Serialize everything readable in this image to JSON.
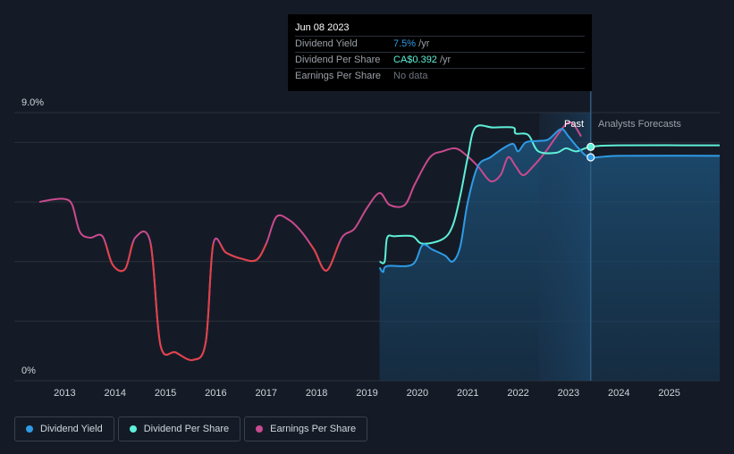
{
  "colors": {
    "background": "#151b26",
    "dividend_yield": "#2e9be6",
    "dividend_per_share": "#5ef0d8",
    "eps_positive": "#c94a8f",
    "eps_negative": "#e0434a",
    "grid": "#2a303b"
  },
  "tooltip": {
    "date": "Jun 08 2023",
    "rows": [
      {
        "label": "Dividend Yield",
        "value": "7.5%",
        "suffix": " /yr"
      },
      {
        "label": "Dividend Per Share",
        "value": "CA$0.392",
        "suffix": " /yr"
      },
      {
        "label": "Earnings Per Share",
        "value": "No data",
        "suffix": ""
      }
    ]
  },
  "legend": {
    "items": [
      {
        "label": "Dividend Yield",
        "color": "#2e9be6"
      },
      {
        "label": "Dividend Per Share",
        "color": "#5ef0d8"
      },
      {
        "label": "Earnings Per Share",
        "color": "#c94a8f"
      }
    ]
  },
  "chart_data": {
    "type": "line",
    "y_axis": {
      "min": 0,
      "max": 9.0,
      "top_label": "9.0%",
      "bottom_label": "0%"
    },
    "x_axis": {
      "min": 2012.25,
      "max": 2026.0,
      "ticks": [
        "2013",
        "2014",
        "2015",
        "2016",
        "2017",
        "2018",
        "2019",
        "2020",
        "2021",
        "2022",
        "2023",
        "2024",
        "2025"
      ]
    },
    "past_label": "Past",
    "forecast_label": "Analysts Forecasts",
    "forecast_start": 2023.44,
    "shaded_start": 2022.42,
    "series": [
      {
        "name": "Earnings Per Share",
        "key": "eps",
        "points": [
          [
            2012.5,
            6.0
          ],
          [
            2012.75,
            6.08
          ],
          [
            2013.0,
            6.1
          ],
          [
            2013.15,
            5.9
          ],
          [
            2013.3,
            5.0
          ],
          [
            2013.5,
            4.8
          ],
          [
            2013.75,
            4.85
          ],
          [
            2013.95,
            3.9
          ],
          [
            2014.2,
            3.75
          ],
          [
            2014.4,
            4.8
          ],
          [
            2014.7,
            4.65
          ],
          [
            2014.9,
            1.2
          ],
          [
            2015.2,
            0.95
          ],
          [
            2015.55,
            0.7
          ],
          [
            2015.8,
            1.3
          ],
          [
            2015.95,
            4.6
          ],
          [
            2016.2,
            4.3
          ],
          [
            2016.5,
            4.1
          ],
          [
            2016.8,
            4.05
          ],
          [
            2017.0,
            4.6
          ],
          [
            2017.2,
            5.5
          ],
          [
            2017.45,
            5.4
          ],
          [
            2017.7,
            5.0
          ],
          [
            2017.95,
            4.4
          ],
          [
            2018.2,
            3.7
          ],
          [
            2018.5,
            4.8
          ],
          [
            2018.75,
            5.1
          ],
          [
            2019.0,
            5.8
          ],
          [
            2019.25,
            6.3
          ],
          [
            2019.45,
            5.9
          ],
          [
            2019.75,
            5.9
          ],
          [
            2019.95,
            6.6
          ],
          [
            2020.25,
            7.5
          ],
          [
            2020.5,
            7.7
          ],
          [
            2020.75,
            7.8
          ],
          [
            2020.95,
            7.6
          ],
          [
            2021.2,
            7.2
          ],
          [
            2021.45,
            6.7
          ],
          [
            2021.65,
            6.9
          ],
          [
            2021.8,
            7.5
          ],
          [
            2021.95,
            7.2
          ],
          [
            2022.1,
            6.9
          ],
          [
            2022.3,
            7.2
          ],
          [
            2022.55,
            7.7
          ],
          [
            2022.8,
            8.3
          ],
          [
            2022.98,
            8.65
          ],
          [
            2023.1,
            8.6
          ],
          [
            2023.25,
            8.2
          ]
        ]
      },
      {
        "name": "Dividend Per Share",
        "key": "dps",
        "points": [
          [
            2019.25,
            4.0
          ],
          [
            2019.35,
            4.0
          ],
          [
            2019.4,
            4.8
          ],
          [
            2019.55,
            4.85
          ],
          [
            2019.9,
            4.85
          ],
          [
            2020.1,
            4.6
          ],
          [
            2020.5,
            4.75
          ],
          [
            2020.7,
            5.2
          ],
          [
            2020.85,
            6.2
          ],
          [
            2021.0,
            7.5
          ],
          [
            2021.15,
            8.5
          ],
          [
            2021.5,
            8.5
          ],
          [
            2021.9,
            8.5
          ],
          [
            2021.95,
            8.3
          ],
          [
            2022.2,
            8.25
          ],
          [
            2022.4,
            7.7
          ],
          [
            2022.75,
            7.65
          ],
          [
            2022.95,
            7.8
          ],
          [
            2023.15,
            7.7
          ],
          [
            2023.44,
            7.85
          ],
          [
            2024.0,
            7.9
          ],
          [
            2026.0,
            7.9
          ]
        ]
      },
      {
        "name": "Dividend Yield",
        "key": "yield",
        "points": [
          [
            2019.25,
            3.8
          ],
          [
            2019.32,
            3.65
          ],
          [
            2019.4,
            3.85
          ],
          [
            2019.9,
            3.9
          ],
          [
            2020.1,
            4.55
          ],
          [
            2020.3,
            4.4
          ],
          [
            2020.55,
            4.2
          ],
          [
            2020.7,
            4.0
          ],
          [
            2020.85,
            4.5
          ],
          [
            2021.0,
            6.0
          ],
          [
            2021.2,
            7.2
          ],
          [
            2021.45,
            7.5
          ],
          [
            2021.7,
            7.8
          ],
          [
            2021.9,
            7.95
          ],
          [
            2022.0,
            7.7
          ],
          [
            2022.15,
            8.0
          ],
          [
            2022.4,
            8.05
          ],
          [
            2022.6,
            8.1
          ],
          [
            2022.85,
            8.45
          ],
          [
            2023.0,
            8.2
          ],
          [
            2023.2,
            7.8
          ],
          [
            2023.44,
            7.5
          ],
          [
            2024.0,
            7.55
          ],
          [
            2026.0,
            7.55
          ]
        ]
      }
    ],
    "markers": [
      {
        "key": "dps",
        "x": 2023.44,
        "y": 7.85
      },
      {
        "key": "yield",
        "x": 2023.44,
        "y": 7.5
      }
    ]
  }
}
